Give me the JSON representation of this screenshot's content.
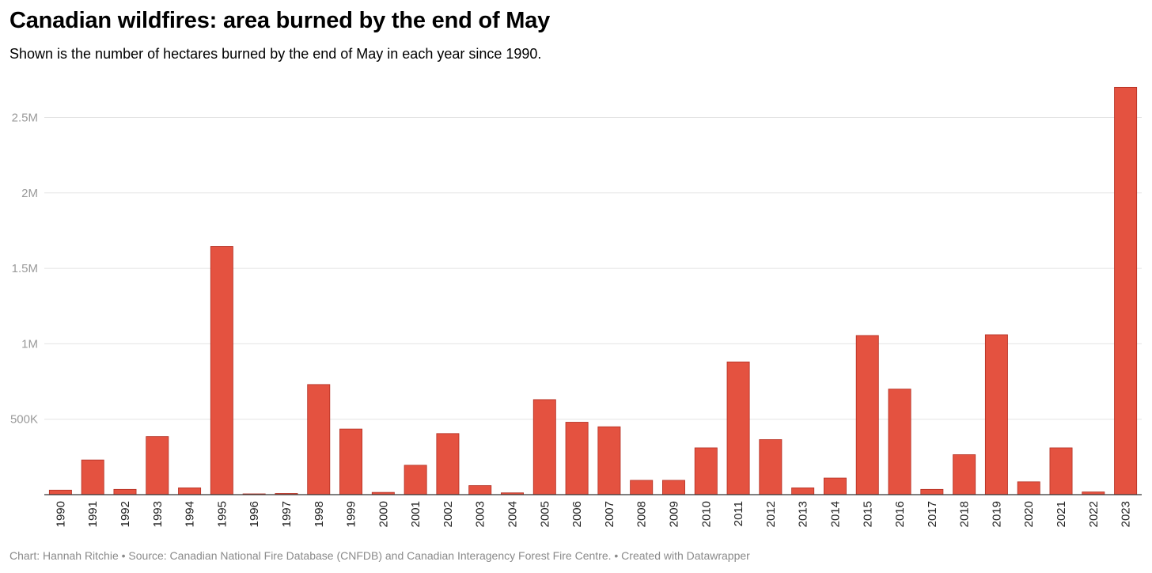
{
  "title": "Canadian wildfires: area burned by the end of May",
  "subtitle": "Shown is the number of hectares burned by the end of May in each year since 1990.",
  "footer": "Chart: Hannah Ritchie • Source: Canadian National Fire Database (CNFDB) and Canadian Interagency Forest Fire Centre. • Created with Datawrapper",
  "colors": {
    "bar": "#e45240",
    "bar_edge": "#b32f22",
    "grid": "#e3e3e3",
    "baseline": "#333333"
  },
  "chart_data": {
    "type": "bar",
    "title": "Canadian wildfires: area burned by the end of May",
    "xlabel": "",
    "ylabel": "",
    "categories": [
      "1990",
      "1991",
      "1992",
      "1993",
      "1994",
      "1995",
      "1996",
      "1997",
      "1998",
      "1999",
      "2000",
      "2001",
      "2002",
      "2003",
      "2004",
      "2005",
      "2006",
      "2007",
      "2008",
      "2009",
      "2010",
      "2011",
      "2012",
      "2013",
      "2014",
      "2015",
      "2016",
      "2017",
      "2018",
      "2019",
      "2020",
      "2021",
      "2022",
      "2023"
    ],
    "values": [
      30000,
      230000,
      35000,
      385000,
      45000,
      1645000,
      5000,
      8000,
      730000,
      435000,
      15000,
      195000,
      405000,
      60000,
      12000,
      630000,
      480000,
      450000,
      95000,
      95000,
      310000,
      880000,
      365000,
      45000,
      110000,
      1055000,
      700000,
      35000,
      265000,
      1060000,
      85000,
      310000,
      18000,
      2700000
    ],
    "ylim": [
      0,
      2700000
    ],
    "yticks": [
      500000,
      1000000,
      1500000,
      2000000,
      2500000
    ],
    "ytick_labels": [
      "500K",
      "1M",
      "1.5M",
      "2M",
      "2.5M"
    ],
    "grid": true,
    "legend": "none"
  }
}
